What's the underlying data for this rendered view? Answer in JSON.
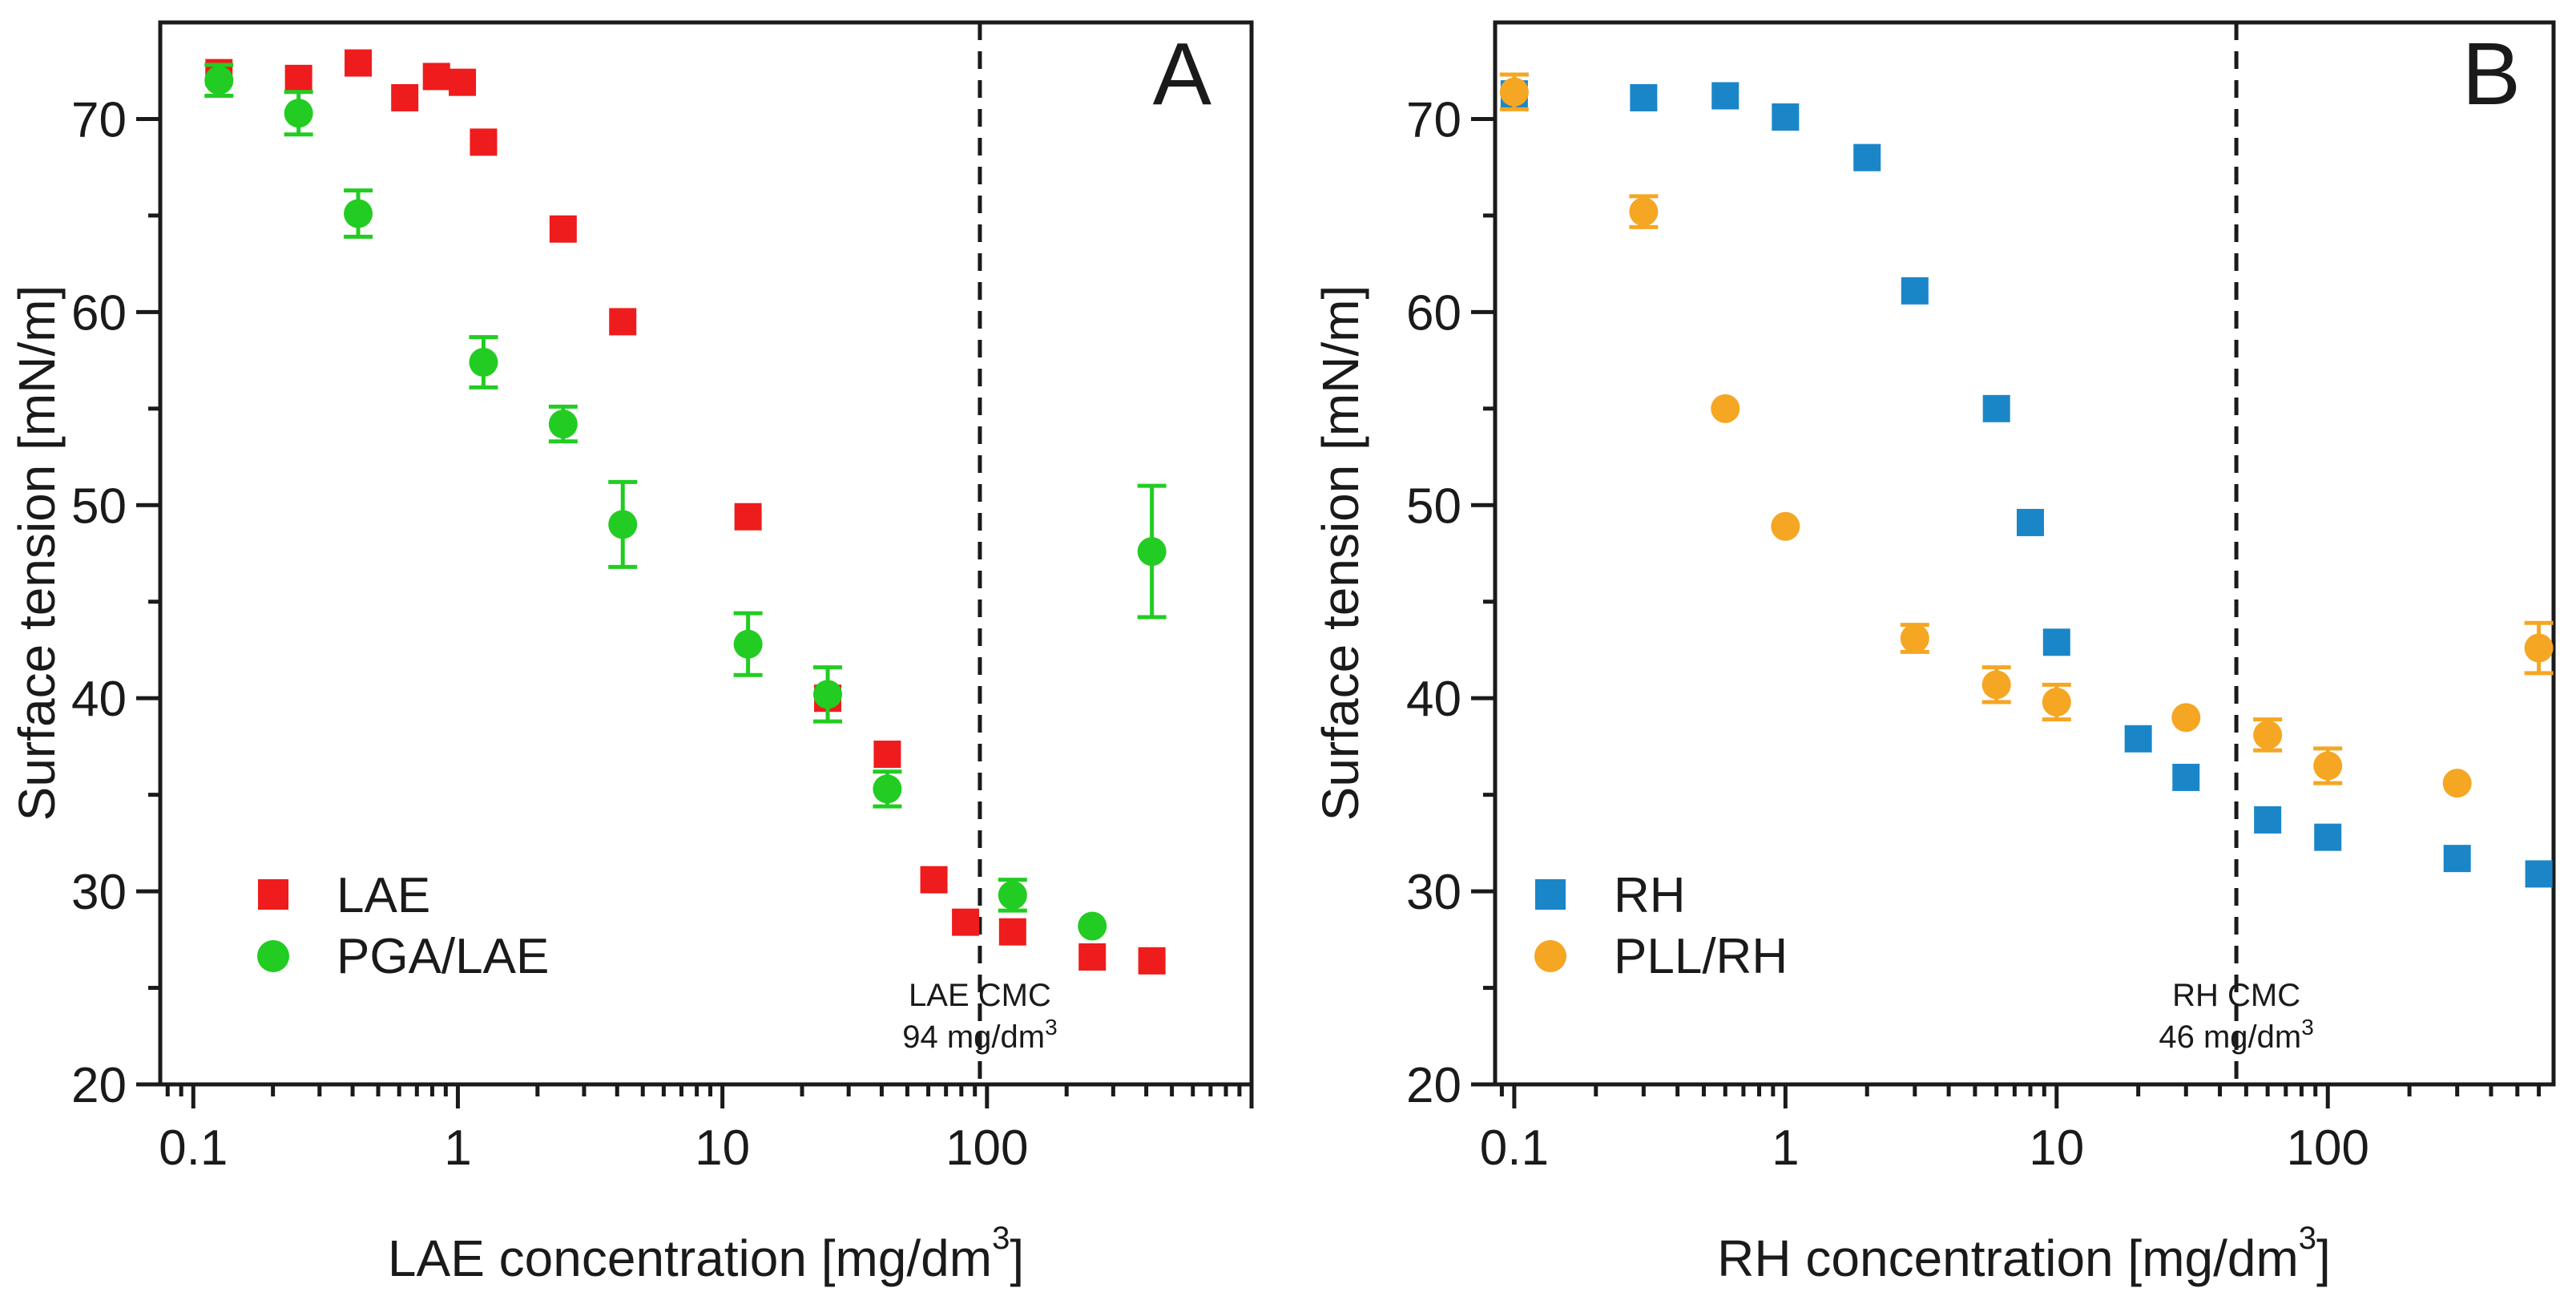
{
  "chart_data": [
    {
      "type": "scatter",
      "panel": "A",
      "xscale": "log",
      "xlim": [
        0.075,
        1000
      ],
      "ylim": [
        20,
        75
      ],
      "xticks": [
        0.1,
        1,
        10,
        100
      ],
      "xtick_labels": [
        "0.1",
        "1",
        "10",
        "100"
      ],
      "yticks": [
        20,
        30,
        40,
        50,
        60,
        70
      ],
      "ytick_labels": [
        "20",
        "30",
        "40",
        "50",
        "60",
        "70"
      ],
      "xlabel": "LAE concentration [mg/dm",
      "xlabel_sup": "3",
      "xlabel_end": "]",
      "ylabel": "Surface tension [mN/m]",
      "cmc": {
        "x": 94,
        "label1": "LAE CMC",
        "label2": "94 mg/dm",
        "label2_sup": "3"
      },
      "legend_position": "bottom-left",
      "series": [
        {
          "name": "LAE",
          "marker": "square",
          "color": "#ee1c1c",
          "x": [
            0.125,
            0.25,
            0.42,
            0.63,
            0.83,
            1.04,
            1.25,
            2.5,
            4.2,
            12.5,
            25,
            42,
            63,
            83,
            125,
            250,
            420
          ],
          "y": [
            72.4,
            72.1,
            72.9,
            71.1,
            72.2,
            71.9,
            68.8,
            64.3,
            59.5,
            49.4,
            40.0,
            37.1,
            30.6,
            28.4,
            27.9,
            26.6,
            26.4
          ],
          "err": [
            0.4,
            0.4,
            0.4,
            0.4,
            0.4,
            0.4,
            0.4,
            0.4,
            0.4,
            0.4,
            0.4,
            0.4,
            0.4,
            0.4,
            0.4,
            0.4,
            0.4
          ]
        },
        {
          "name": "PGA/LAE",
          "marker": "circle",
          "color": "#22cc22",
          "x": [
            0.125,
            0.25,
            0.42,
            1.25,
            2.5,
            4.2,
            12.5,
            25,
            42,
            125,
            250,
            420
          ],
          "y": [
            72.0,
            70.3,
            65.1,
            57.4,
            54.2,
            49.0,
            42.8,
            40.2,
            35.3,
            29.8,
            28.2,
            47.6
          ],
          "err": [
            0.8,
            1.1,
            1.2,
            1.3,
            0.9,
            2.2,
            1.6,
            1.4,
            0.9,
            0.8,
            0.5,
            3.4
          ]
        }
      ]
    },
    {
      "type": "scatter",
      "panel": "B",
      "xscale": "log",
      "xlim": [
        0.085,
        680
      ],
      "ylim": [
        20,
        75
      ],
      "xticks": [
        0.1,
        1,
        10,
        100
      ],
      "xtick_labels": [
        "0.1",
        "1",
        "10",
        "100"
      ],
      "yticks": [
        20,
        30,
        40,
        50,
        60,
        70
      ],
      "ytick_labels": [
        "20",
        "30",
        "40",
        "50",
        "60",
        "70"
      ],
      "xlabel": "RH concentration [mg/dm",
      "xlabel_sup": "3",
      "xlabel_end": "]",
      "ylabel": "Surface tension [mN/m]",
      "cmc": {
        "x": 46,
        "label1": "RH CMC",
        "label2": "46 mg/dm",
        "label2_sup": "3"
      },
      "legend_position": "bottom-left",
      "series": [
        {
          "name": "RH",
          "marker": "square",
          "color": "#1a86c8",
          "x": [
            0.1,
            0.3,
            0.6,
            1,
            2,
            3,
            6,
            8,
            10,
            20,
            30,
            60,
            100,
            300,
            600
          ],
          "y": [
            71.3,
            71.1,
            71.2,
            70.1,
            68.0,
            61.1,
            55.0,
            49.1,
            42.9,
            37.9,
            35.9,
            33.7,
            32.8,
            31.7,
            30.9
          ],
          "err": [
            0.4,
            0.4,
            0.4,
            0.4,
            0.4,
            0.4,
            0.4,
            0.4,
            0.4,
            0.4,
            0.4,
            0.4,
            0.4,
            0.4,
            0.4
          ]
        },
        {
          "name": "PLL/RH",
          "marker": "circle",
          "color": "#f5a623",
          "x": [
            0.1,
            0.3,
            0.6,
            1,
            3,
            6,
            10,
            30,
            60,
            100,
            300,
            600
          ],
          "y": [
            71.4,
            65.2,
            55.0,
            48.9,
            43.1,
            40.7,
            39.8,
            39.0,
            38.1,
            36.5,
            35.6,
            42.6
          ],
          "err": [
            0.9,
            0.8,
            0.4,
            0.4,
            0.7,
            0.9,
            0.9,
            0.4,
            0.8,
            0.9,
            0.5,
            1.3
          ]
        }
      ]
    }
  ]
}
